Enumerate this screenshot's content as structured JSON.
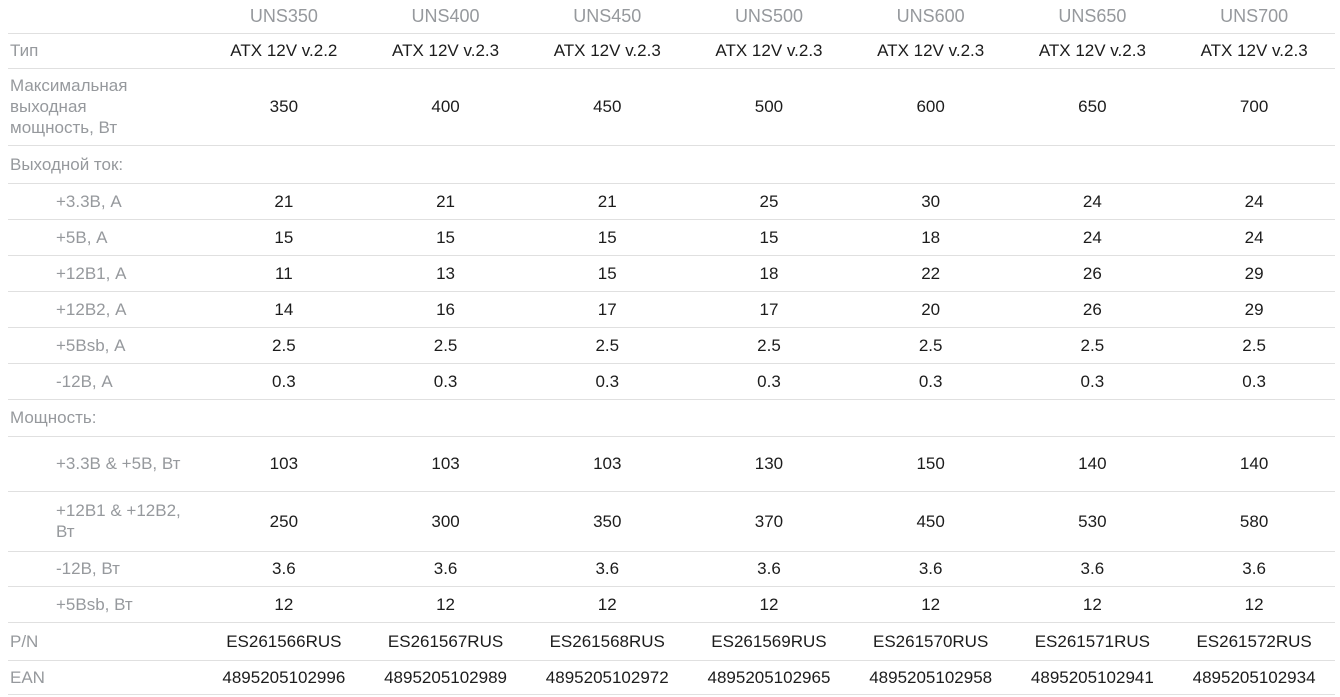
{
  "colors": {
    "label_text": "#96999d",
    "value_text": "#1c1c1c",
    "row_border": "#e0e0e0",
    "background": "#ffffff"
  },
  "spec_table": {
    "columns": [
      "UNS350",
      "UNS400",
      "UNS450",
      "UNS500",
      "UNS600",
      "UNS650",
      "UNS700"
    ],
    "rows": [
      {
        "label": "Тип",
        "kind": "plain",
        "values": [
          "ATX 12V v.2.2",
          "ATX 12V v.2.3",
          "ATX 12V v.2.3",
          "ATX 12V v.2.3",
          "ATX 12V v.2.3",
          "ATX 12V v.2.3",
          "ATX 12V v.2.3"
        ]
      },
      {
        "label": "Максимальная выходная мощность, Вт",
        "kind": "plain",
        "values": [
          "350",
          "400",
          "450",
          "500",
          "600",
          "650",
          "700"
        ]
      },
      {
        "label": "Выходной ток:",
        "kind": "group",
        "values": [
          "",
          "",
          "",
          "",
          "",
          "",
          ""
        ]
      },
      {
        "label": "+3.3В, А",
        "kind": "sub",
        "values": [
          "21",
          "21",
          "21",
          "25",
          "30",
          "24",
          "24"
        ]
      },
      {
        "label": "+5В, А",
        "kind": "sub",
        "values": [
          "15",
          "15",
          "15",
          "15",
          "18",
          "24",
          "24"
        ]
      },
      {
        "label": "+12В1, А",
        "kind": "sub",
        "values": [
          "11",
          "13",
          "15",
          "18",
          "22",
          "26",
          "29"
        ]
      },
      {
        "label": "+12В2, А",
        "kind": "sub",
        "values": [
          "14",
          "16",
          "17",
          "17",
          "20",
          "26",
          "29"
        ]
      },
      {
        "label": "+5Bsb, А",
        "kind": "sub",
        "values": [
          "2.5",
          "2.5",
          "2.5",
          "2.5",
          "2.5",
          "2.5",
          "2.5"
        ]
      },
      {
        "label": "-12В, А",
        "kind": "sub",
        "values": [
          "0.3",
          "0.3",
          "0.3",
          "0.3",
          "0.3",
          "0.3",
          "0.3"
        ]
      },
      {
        "label": "Мощность:",
        "kind": "group",
        "values": [
          "",
          "",
          "",
          "",
          "",
          "",
          ""
        ]
      },
      {
        "label": "+3.3В & +5В, Вт",
        "kind": "sub",
        "values": [
          "103",
          "103",
          "103",
          "130",
          "150",
          "140",
          "140"
        ]
      },
      {
        "label": "+12В1 & +12В2, Вт",
        "kind": "sub",
        "values": [
          "250",
          "300",
          "350",
          "370",
          "450",
          "530",
          "580"
        ]
      },
      {
        "label": "-12В, Вт",
        "kind": "sub",
        "values": [
          "3.6",
          "3.6",
          "3.6",
          "3.6",
          "3.6",
          "3.6",
          "3.6"
        ]
      },
      {
        "label": "+5Bsb, Вт",
        "kind": "sub",
        "values": [
          "12",
          "12",
          "12",
          "12",
          "12",
          "12",
          "12"
        ]
      },
      {
        "label": "P/N",
        "kind": "plain",
        "values": [
          "ES261566RUS",
          "ES261567RUS",
          "ES261568RUS",
          "ES261569RUS",
          "ES261570RUS",
          "ES261571RUS",
          "ES261572RUS"
        ]
      },
      {
        "label": "EAN",
        "kind": "plain",
        "values": [
          "4895205102996",
          "4895205102989",
          "4895205102972",
          "4895205102965",
          "4895205102958",
          "4895205102941",
          "4895205102934"
        ]
      }
    ]
  }
}
